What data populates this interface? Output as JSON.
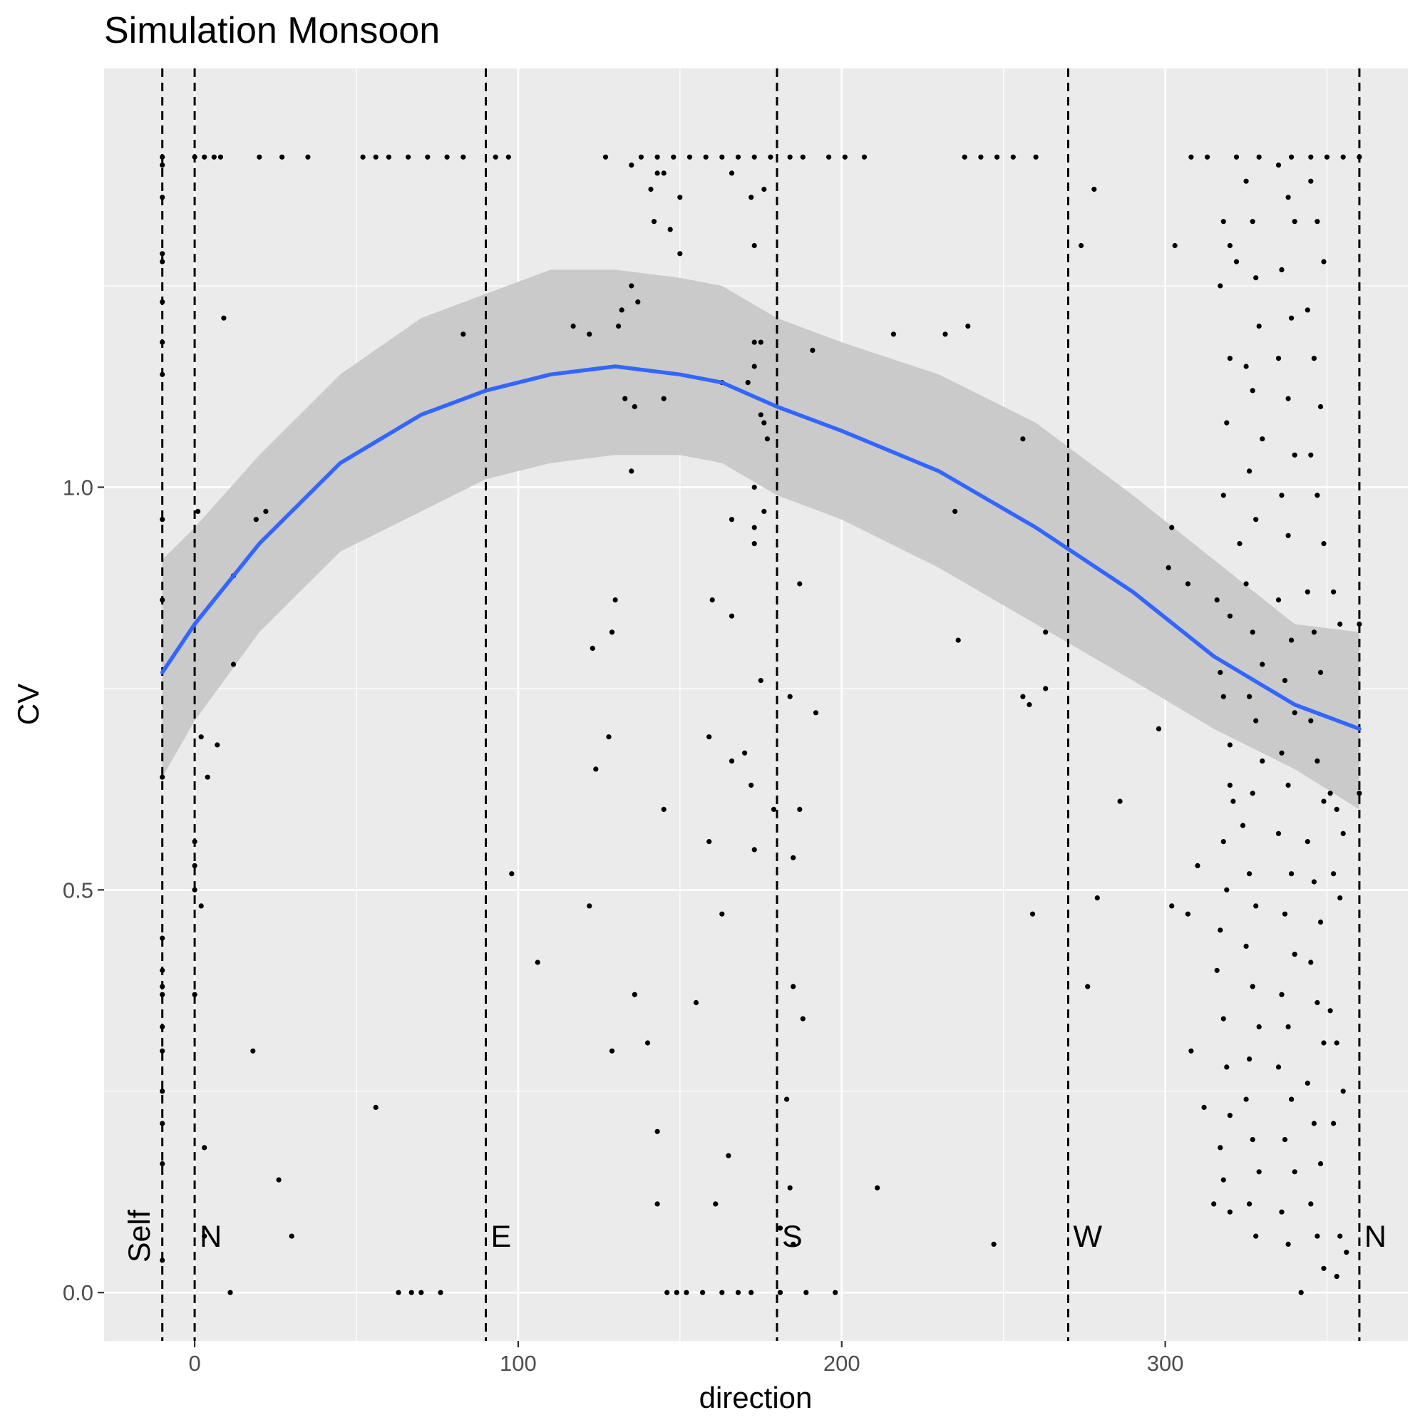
{
  "chart_data": {
    "type": "scatter",
    "title": "Simulation Monsoon",
    "xlabel": "direction",
    "ylabel": "CV",
    "xlim": [
      -28,
      375
    ],
    "ylim": [
      -0.06,
      1.52
    ],
    "x_ticks": [
      0,
      100,
      200,
      300
    ],
    "y_ticks": [
      0.0,
      0.5,
      1.0
    ],
    "x_tick_labels": [
      "0",
      "100",
      "200",
      "300"
    ],
    "y_tick_labels": [
      "0.0",
      "0.5",
      "1.0"
    ],
    "grid": true,
    "panel_background": "#ebebeb",
    "reference_lines": [
      {
        "x": -10,
        "label": "Self"
      },
      {
        "x": 0,
        "label": "N"
      },
      {
        "x": 90,
        "label": "E"
      },
      {
        "x": 180,
        "label": "S"
      },
      {
        "x": 270,
        "label": "W"
      },
      {
        "x": 360,
        "label": "N"
      }
    ],
    "smooth": {
      "color": "#3366ff",
      "band_color": "#c8c8c8",
      "x": [
        -10,
        0,
        20,
        45,
        70,
        90,
        110,
        130,
        150,
        163,
        180,
        200,
        230,
        260,
        290,
        315,
        340,
        360
      ],
      "y": [
        0.77,
        0.83,
        0.93,
        1.03,
        1.09,
        1.12,
        1.14,
        1.15,
        1.14,
        1.13,
        1.1,
        1.07,
        1.02,
        0.95,
        0.87,
        0.79,
        0.73,
        0.7
      ],
      "upper": [
        0.91,
        0.95,
        1.04,
        1.14,
        1.21,
        1.24,
        1.27,
        1.27,
        1.26,
        1.25,
        1.21,
        1.18,
        1.14,
        1.08,
        0.99,
        0.91,
        0.83,
        0.82
      ],
      "lower": [
        0.64,
        0.71,
        0.82,
        0.92,
        0.97,
        1.01,
        1.03,
        1.04,
        1.04,
        1.03,
        0.99,
        0.96,
        0.9,
        0.83,
        0.76,
        0.7,
        0.65,
        0.6
      ]
    },
    "points": [
      [
        -10,
        1.41
      ],
      [
        -10,
        1.4
      ],
      [
        -10,
        1.36
      ],
      [
        -10,
        1.29
      ],
      [
        -10,
        1.28
      ],
      [
        -10,
        1.23
      ],
      [
        -10,
        1.18
      ],
      [
        -10,
        1.14
      ],
      [
        -10,
        0.96
      ],
      [
        -10,
        0.86
      ],
      [
        -10,
        0.64
      ],
      [
        -10,
        0.44
      ],
      [
        -10,
        0.4
      ],
      [
        -10,
        0.38
      ],
      [
        -10,
        0.37
      ],
      [
        -10,
        0.33
      ],
      [
        -10,
        0.3
      ],
      [
        -10,
        0.25
      ],
      [
        -10,
        0.21
      ],
      [
        -10,
        0.16
      ],
      [
        -10,
        0.04
      ],
      [
        0,
        1.41
      ],
      [
        1,
        0.97
      ],
      [
        0,
        0.56
      ],
      [
        0,
        0.53
      ],
      [
        0,
        0.5
      ],
      [
        2,
        0.48
      ],
      [
        0,
        0.37
      ],
      [
        2,
        0.69
      ],
      [
        4,
        0.64
      ],
      [
        7,
        0.68
      ],
      [
        3,
        0.18
      ],
      [
        3,
        0.07
      ],
      [
        11,
        0.0
      ],
      [
        9,
        1.21
      ],
      [
        12,
        0.78
      ],
      [
        12,
        0.89
      ],
      [
        19,
        0.96
      ],
      [
        22,
        0.97
      ],
      [
        18,
        0.3
      ],
      [
        26,
        0.14
      ],
      [
        30,
        0.07
      ],
      [
        56,
        0.23
      ],
      [
        3,
        1.41
      ],
      [
        6,
        1.41
      ],
      [
        8,
        1.41
      ],
      [
        20,
        1.41
      ],
      [
        27,
        1.41
      ],
      [
        35,
        1.41
      ],
      [
        52,
        1.41
      ],
      [
        56,
        1.41
      ],
      [
        60,
        1.41
      ],
      [
        66,
        1.41
      ],
      [
        72,
        1.41
      ],
      [
        78,
        1.41
      ],
      [
        83,
        1.41
      ],
      [
        93,
        1.41
      ],
      [
        97,
        1.41
      ],
      [
        127,
        1.41
      ],
      [
        83,
        1.19
      ],
      [
        98,
        0.52
      ],
      [
        106,
        0.41
      ],
      [
        63,
        0.0
      ],
      [
        67,
        0.0
      ],
      [
        70,
        0.0
      ],
      [
        76,
        0.0
      ],
      [
        117,
        1.2
      ],
      [
        122,
        1.19
      ],
      [
        131,
        1.2
      ],
      [
        132,
        1.22
      ],
      [
        135,
        1.25
      ],
      [
        137,
        1.23
      ],
      [
        133,
        1.11
      ],
      [
        136,
        1.1
      ],
      [
        145,
        1.11
      ],
      [
        135,
        1.02
      ],
      [
        130,
        0.86
      ],
      [
        129,
        0.82
      ],
      [
        123,
        0.8
      ],
      [
        128,
        0.69
      ],
      [
        124,
        0.65
      ],
      [
        122,
        0.48
      ],
      [
        136,
        0.37
      ],
      [
        129,
        0.3
      ],
      [
        140,
        0.31
      ],
      [
        143,
        0.2
      ],
      [
        143,
        0.11
      ],
      [
        135,
        1.4
      ],
      [
        141,
        1.37
      ],
      [
        143,
        1.39
      ],
      [
        145,
        1.39
      ],
      [
        150,
        1.36
      ],
      [
        142,
        1.33
      ],
      [
        147,
        1.32
      ],
      [
        150,
        1.29
      ],
      [
        145,
        0.6
      ],
      [
        155,
        0.36
      ],
      [
        163,
        0.47
      ],
      [
        165,
        0.17
      ],
      [
        160,
        0.86
      ],
      [
        166,
        0.84
      ],
      [
        159,
        0.69
      ],
      [
        159,
        0.56
      ],
      [
        166,
        0.66
      ],
      [
        170,
        0.67
      ],
      [
        172,
        0.63
      ],
      [
        173,
        0.55
      ],
      [
        175,
        0.76
      ],
      [
        161,
        0.11
      ],
      [
        138,
        1.41
      ],
      [
        143,
        1.41
      ],
      [
        148,
        1.41
      ],
      [
        153,
        1.41
      ],
      [
        158,
        1.41
      ],
      [
        163,
        1.41
      ],
      [
        168,
        1.41
      ],
      [
        173,
        1.41
      ],
      [
        178,
        1.41
      ],
      [
        184,
        1.41
      ],
      [
        188,
        1.41
      ],
      [
        196,
        1.41
      ],
      [
        201,
        1.41
      ],
      [
        207,
        1.41
      ],
      [
        166,
        1.39
      ],
      [
        176,
        1.37
      ],
      [
        172,
        1.36
      ],
      [
        173,
        1.3
      ],
      [
        173,
        1.18
      ],
      [
        175,
        1.18
      ],
      [
        173,
        1.15
      ],
      [
        163,
        1.13
      ],
      [
        171,
        1.13
      ],
      [
        175,
        1.09
      ],
      [
        176,
        1.08
      ],
      [
        177,
        1.06
      ],
      [
        173,
        1.0
      ],
      [
        176,
        0.97
      ],
      [
        173,
        0.95
      ],
      [
        166,
        0.96
      ],
      [
        173,
        0.93
      ],
      [
        187,
        0.88
      ],
      [
        191,
        1.17
      ],
      [
        184,
        0.74
      ],
      [
        192,
        0.72
      ],
      [
        179,
        0.6
      ],
      [
        187,
        0.6
      ],
      [
        185,
        0.54
      ],
      [
        185,
        0.38
      ],
      [
        188,
        0.34
      ],
      [
        183,
        0.24
      ],
      [
        184,
        0.13
      ],
      [
        185,
        0.06
      ],
      [
        181,
        0.08
      ],
      [
        211,
        0.13
      ],
      [
        189,
        0.0
      ],
      [
        198,
        0.0
      ],
      [
        181,
        0.0
      ],
      [
        146,
        0.0
      ],
      [
        149,
        0.0
      ],
      [
        152,
        0.0
      ],
      [
        157,
        0.0
      ],
      [
        163,
        0.0
      ],
      [
        168,
        0.0
      ],
      [
        172,
        0.0
      ],
      [
        216,
        1.19
      ],
      [
        232,
        1.19
      ],
      [
        239,
        1.2
      ],
      [
        235,
        0.97
      ],
      [
        236,
        0.81
      ],
      [
        247,
        0.06
      ],
      [
        238,
        1.41
      ],
      [
        243,
        1.41
      ],
      [
        248,
        1.41
      ],
      [
        253,
        1.41
      ],
      [
        260,
        1.41
      ],
      [
        256,
        1.06
      ],
      [
        256,
        0.74
      ],
      [
        258,
        0.73
      ],
      [
        263,
        0.82
      ],
      [
        263,
        0.75
      ],
      [
        259,
        0.47
      ],
      [
        278,
        1.37
      ],
      [
        274,
        1.3
      ],
      [
        286,
        0.61
      ],
      [
        279,
        0.49
      ],
      [
        276,
        0.38
      ],
      [
        308,
        1.41
      ],
      [
        313,
        1.41
      ],
      [
        322,
        1.41
      ],
      [
        329,
        1.41
      ],
      [
        339,
        1.41
      ],
      [
        345,
        1.41
      ],
      [
        350,
        1.41
      ],
      [
        355,
        1.41
      ],
      [
        360,
        1.41
      ],
      [
        303,
        1.3
      ],
      [
        302,
        0.95
      ],
      [
        301,
        0.9
      ],
      [
        307,
        0.88
      ],
      [
        298,
        0.7
      ],
      [
        310,
        0.53
      ],
      [
        302,
        0.48
      ],
      [
        307,
        0.47
      ],
      [
        308,
        0.3
      ],
      [
        312,
        0.23
      ],
      [
        315,
        0.11
      ],
      [
        318,
        1.33
      ],
      [
        320,
        1.3
      ],
      [
        322,
        1.28
      ],
      [
        317,
        1.25
      ],
      [
        320,
        1.16
      ],
      [
        319,
        1.08
      ],
      [
        318,
        0.99
      ],
      [
        323,
        0.93
      ],
      [
        316,
        0.86
      ],
      [
        320,
        0.84
      ],
      [
        317,
        0.77
      ],
      [
        318,
        0.74
      ],
      [
        320,
        0.68
      ],
      [
        320,
        0.63
      ],
      [
        321,
        0.61
      ],
      [
        318,
        0.56
      ],
      [
        319,
        0.5
      ],
      [
        317,
        0.45
      ],
      [
        316,
        0.4
      ],
      [
        318,
        0.34
      ],
      [
        319,
        0.28
      ],
      [
        320,
        0.22
      ],
      [
        317,
        0.18
      ],
      [
        318,
        0.14
      ],
      [
        320,
        0.1
      ],
      [
        325,
        1.38
      ],
      [
        327,
        1.33
      ],
      [
        328,
        1.26
      ],
      [
        329,
        1.2
      ],
      [
        325,
        1.15
      ],
      [
        327,
        1.12
      ],
      [
        330,
        1.06
      ],
      [
        326,
        1.02
      ],
      [
        328,
        0.96
      ],
      [
        325,
        0.88
      ],
      [
        327,
        0.82
      ],
      [
        330,
        0.78
      ],
      [
        326,
        0.74
      ],
      [
        328,
        0.71
      ],
      [
        330,
        0.66
      ],
      [
        327,
        0.62
      ],
      [
        324,
        0.58
      ],
      [
        326,
        0.52
      ],
      [
        328,
        0.48
      ],
      [
        325,
        0.43
      ],
      [
        327,
        0.38
      ],
      [
        329,
        0.33
      ],
      [
        326,
        0.29
      ],
      [
        325,
        0.24
      ],
      [
        327,
        0.19
      ],
      [
        329,
        0.15
      ],
      [
        326,
        0.11
      ],
      [
        328,
        0.07
      ],
      [
        335,
        1.4
      ],
      [
        338,
        1.36
      ],
      [
        340,
        1.33
      ],
      [
        336,
        1.27
      ],
      [
        339,
        1.21
      ],
      [
        335,
        1.16
      ],
      [
        338,
        1.11
      ],
      [
        340,
        1.04
      ],
      [
        336,
        0.99
      ],
      [
        338,
        0.94
      ],
      [
        335,
        0.86
      ],
      [
        339,
        0.81
      ],
      [
        337,
        0.76
      ],
      [
        340,
        0.72
      ],
      [
        336,
        0.67
      ],
      [
        338,
        0.63
      ],
      [
        335,
        0.57
      ],
      [
        339,
        0.52
      ],
      [
        337,
        0.47
      ],
      [
        340,
        0.42
      ],
      [
        336,
        0.37
      ],
      [
        338,
        0.33
      ],
      [
        335,
        0.28
      ],
      [
        339,
        0.24
      ],
      [
        337,
        0.19
      ],
      [
        340,
        0.15
      ],
      [
        336,
        0.1
      ],
      [
        338,
        0.06
      ],
      [
        342,
        0.0
      ],
      [
        345,
        1.38
      ],
      [
        347,
        1.33
      ],
      [
        349,
        1.28
      ],
      [
        344,
        1.22
      ],
      [
        346,
        1.16
      ],
      [
        348,
        1.1
      ],
      [
        345,
        1.04
      ],
      [
        347,
        0.99
      ],
      [
        349,
        0.93
      ],
      [
        344,
        0.87
      ],
      [
        346,
        0.82
      ],
      [
        348,
        0.77
      ],
      [
        345,
        0.71
      ],
      [
        347,
        0.66
      ],
      [
        349,
        0.61
      ],
      [
        344,
        0.56
      ],
      [
        346,
        0.51
      ],
      [
        348,
        0.46
      ],
      [
        345,
        0.41
      ],
      [
        347,
        0.36
      ],
      [
        349,
        0.31
      ],
      [
        344,
        0.26
      ],
      [
        346,
        0.21
      ],
      [
        348,
        0.16
      ],
      [
        345,
        0.11
      ],
      [
        347,
        0.07
      ],
      [
        349,
        0.03
      ],
      [
        352,
        0.87
      ],
      [
        354,
        0.83
      ],
      [
        351,
        0.62
      ],
      [
        353,
        0.6
      ],
      [
        355,
        0.57
      ],
      [
        352,
        0.52
      ],
      [
        354,
        0.49
      ],
      [
        351,
        0.35
      ],
      [
        353,
        0.31
      ],
      [
        355,
        0.25
      ],
      [
        352,
        0.21
      ],
      [
        354,
        0.07
      ],
      [
        356,
        0.05
      ],
      [
        353,
        0.02
      ],
      [
        360,
        0.83
      ],
      [
        360,
        0.62
      ]
    ]
  }
}
